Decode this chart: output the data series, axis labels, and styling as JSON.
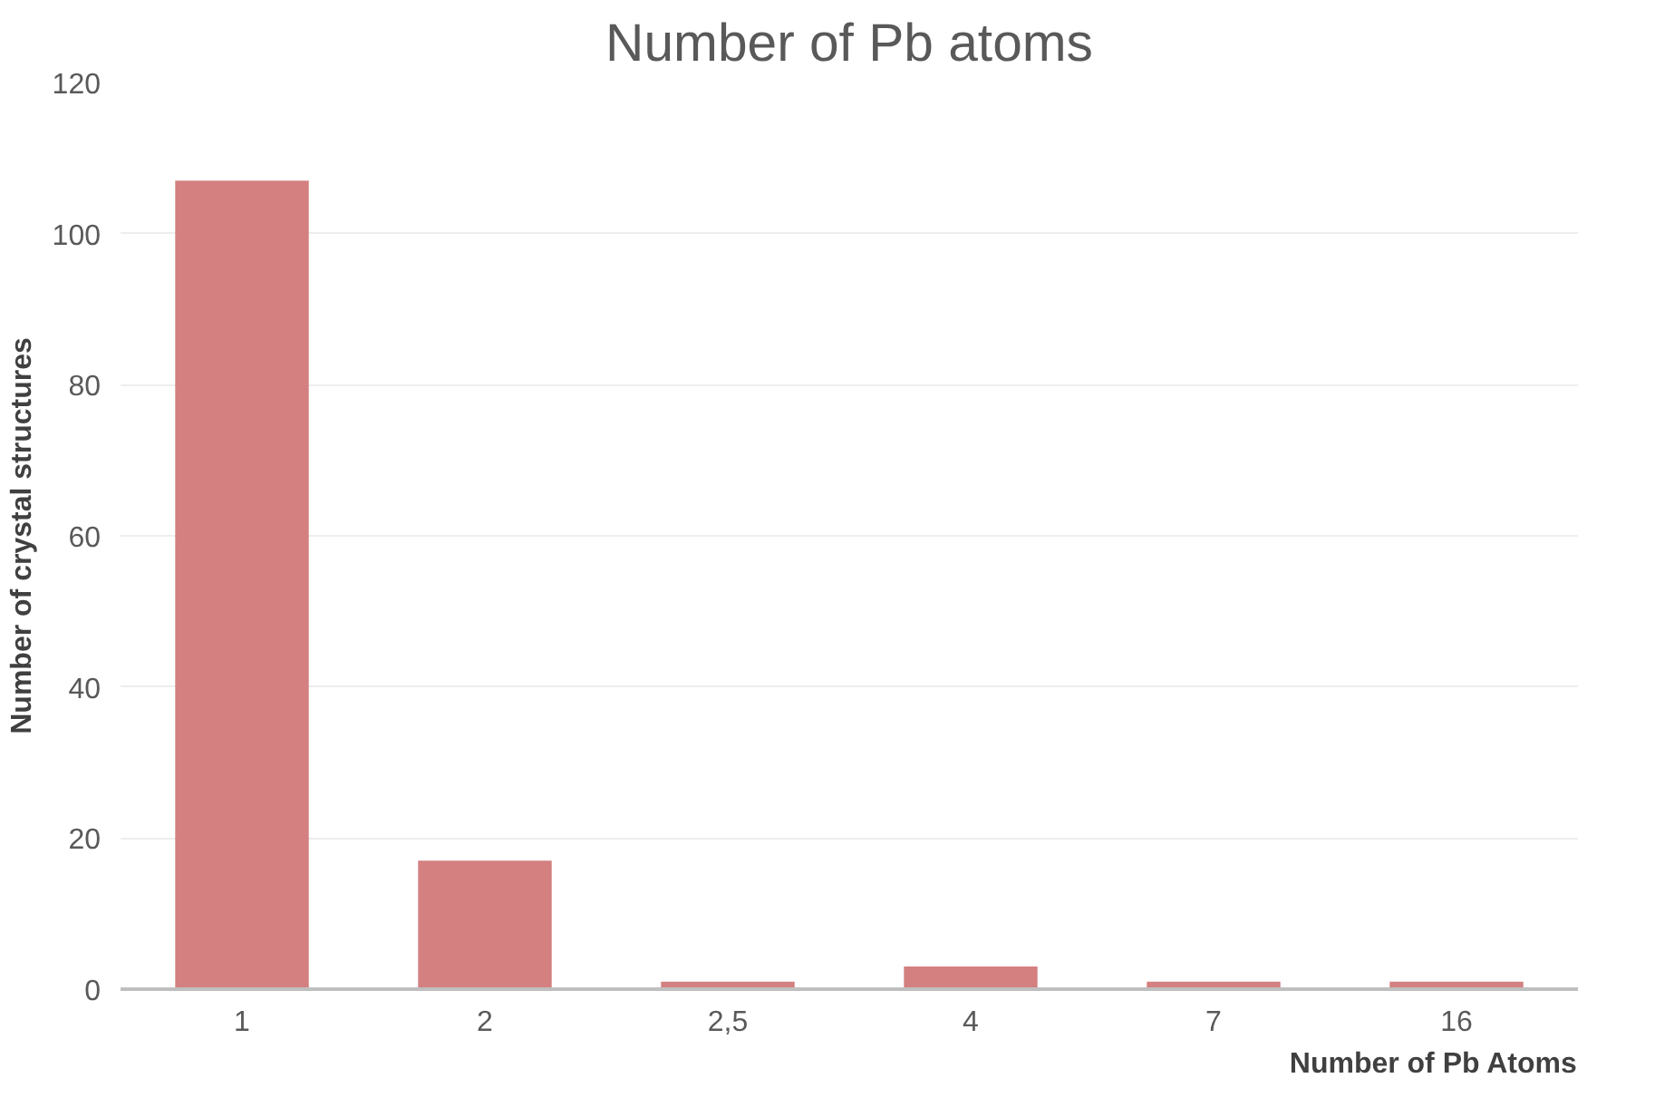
{
  "chart_data": {
    "type": "bar",
    "title": "Number of Pb atoms",
    "xlabel": "Number of Pb Atoms",
    "ylabel": "Number of crystal structures",
    "categories": [
      "1",
      "2",
      "2,5",
      "4",
      "7",
      "16"
    ],
    "values": [
      107,
      17,
      1,
      3,
      1,
      1
    ],
    "color": "#d48080",
    "ylim": [
      0,
      120
    ],
    "yticks": [
      0,
      20,
      40,
      60,
      80,
      100,
      120
    ],
    "grid": "y"
  }
}
